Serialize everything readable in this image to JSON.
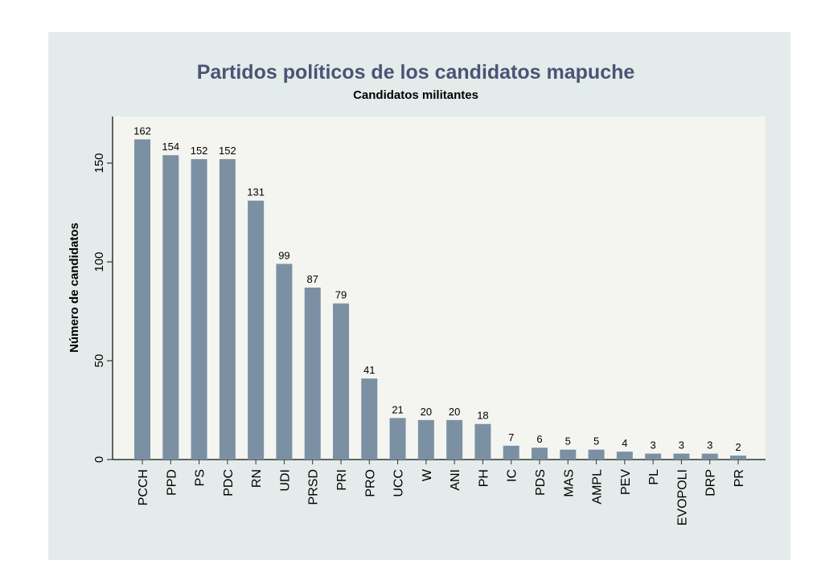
{
  "chart_data": {
    "type": "bar",
    "title": "Partidos políticos de los candidatos mapuche",
    "subtitle": "Candidatos militantes",
    "xlabel": "",
    "ylabel": "Número de candidatos",
    "ylim": [
      0,
      170
    ],
    "yticks": [
      0,
      50,
      100,
      150
    ],
    "grid": false,
    "categories": [
      "PCCH",
      "PPD",
      "PS",
      "PDC",
      "RN",
      "UDI",
      "PRSD",
      "PRI",
      "PRO",
      "UCC",
      "W",
      "ANI",
      "PH",
      "IC",
      "PDS",
      "MAS",
      "AMPL",
      "PEV",
      "PL",
      "EVOPOLI",
      "DRP",
      "PR"
    ],
    "values": [
      162,
      154,
      152,
      152,
      131,
      99,
      87,
      79,
      41,
      21,
      20,
      20,
      18,
      7,
      6,
      5,
      5,
      4,
      3,
      3,
      3,
      2
    ],
    "colors": {
      "bar": "#7b91a3",
      "panel": "#e3ecea",
      "plot": "#f4f5f1",
      "title": "#4a5475"
    }
  }
}
